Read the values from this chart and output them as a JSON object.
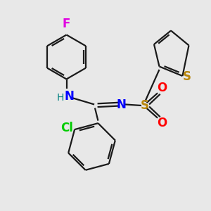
{
  "background_color": "#e8e8e8",
  "bond_color": "#1a1a1a",
  "atom_colors": {
    "F": "#e000e0",
    "N": "#0000ff",
    "H": "#008080",
    "Cl": "#00cc00",
    "S_sulfonyl": "#b8860b",
    "S_thiophene": "#b8860b",
    "O": "#ff0000",
    "C": "#1a1a1a"
  },
  "lw": 1.6,
  "font_size": 11
}
